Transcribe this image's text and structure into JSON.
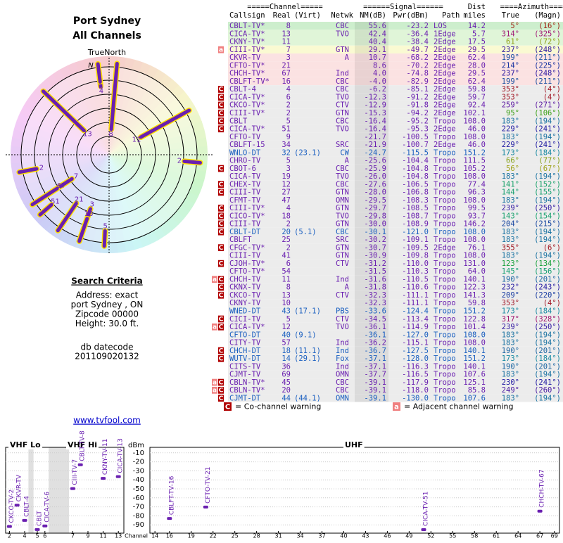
{
  "header": {
    "title": "Port Sydney",
    "subtitle": "All Channels"
  },
  "polar": {
    "north_label": "TrueNorth",
    "north_marker": "N"
  },
  "search": {
    "heading": "Search Criteria",
    "lines": [
      "Address: exact",
      "port Sydney , ON",
      "Zipcode 00000",
      "Height: 30.0 ft."
    ]
  },
  "datecode": {
    "label": "db datecode",
    "value": "201109020132"
  },
  "link": "www.tvfool.com",
  "table": {
    "group_headers": [
      "=====Channel=====",
      "======Signal======",
      "Dist",
      "====Azimuth===="
    ],
    "headers": [
      "Callsign",
      "Real",
      "(Virt)",
      "Netwk",
      "NM(dB)",
      "Pwr(dBm)",
      "Path",
      "miles",
      "True",
      "(Magn)"
    ],
    "rows": [
      {
        "callsign": "CBLT-TV*",
        "real": "8",
        "netwk": "CBC",
        "nm": "55.6",
        "pwr": "-23.2",
        "path": "LOS",
        "dist": "14.2",
        "true": "5°",
        "magn": "(16°)"
      },
      {
        "callsign": "CICA-TV*",
        "real": "13",
        "netwk": "TVO",
        "nm": "42.4",
        "pwr": "-36.4",
        "path": "1Edge",
        "dist": "5.7",
        "true": "314°",
        "magn": "(325°)"
      },
      {
        "callsign": "CKNY-TV*",
        "real": "11",
        "nm": "40.4",
        "pwr": "-38.4",
        "path": "2Edge",
        "dist": "17.5",
        "true": "61°",
        "magn": "(72°)"
      },
      {
        "warn": [
          "a"
        ],
        "callsign": "CIII-TV*",
        "real": "7",
        "netwk": "GTN",
        "nm": "29.1",
        "pwr": "-49.7",
        "path": "2Edge",
        "dist": "29.5",
        "true": "237°",
        "magn": "(248°)"
      },
      {
        "callsign": "CKVR-TV",
        "real": "3",
        "netwk": "A",
        "nm": "10.7",
        "pwr": "-68.2",
        "path": "2Edge",
        "dist": "62.4",
        "true": "199°",
        "magn": "(211°)"
      },
      {
        "callsign": "CFTO-TV*",
        "real": "21",
        "nm": "8.6",
        "pwr": "-70.2",
        "path": "2Edge",
        "dist": "28.0",
        "true": "214°",
        "magn": "(225°)"
      },
      {
        "callsign": "CHCH-TV*",
        "real": "67",
        "netwk": "Ind",
        "nm": "4.0",
        "pwr": "-74.8",
        "path": "2Edge",
        "dist": "29.5",
        "true": "237°",
        "magn": "(248°)"
      },
      {
        "callsign": "CBLFT-TV*",
        "real": "16",
        "netwk": "CBC",
        "nm": "-4.0",
        "pwr": "-82.9",
        "path": "2Edge",
        "dist": "62.4",
        "true": "199°",
        "magn": "(211°)"
      },
      {
        "warn": [
          "C"
        ],
        "callsign": "CBLT-4",
        "real": "4",
        "netwk": "CBC",
        "nm": "-6.2",
        "pwr": "-85.1",
        "path": "2Edge",
        "dist": "59.8",
        "true": "353°",
        "magn": "(4°)"
      },
      {
        "warn": [
          "C"
        ],
        "callsign": "CICA-TV*",
        "real": "6",
        "netwk": "TVO",
        "nm": "-12.3",
        "pwr": "-91.2",
        "path": "2Edge",
        "dist": "59.7",
        "true": "353°",
        "magn": "(4°)"
      },
      {
        "warn": [
          "C"
        ],
        "callsign": "CKCO-TV*",
        "real": "2",
        "netwk": "CTV",
        "nm": "-12.9",
        "pwr": "-91.8",
        "path": "2Edge",
        "dist": "92.4",
        "true": "259°",
        "magn": "(271°)"
      },
      {
        "warn": [
          "C"
        ],
        "callsign": "CIII-TV*",
        "real": "2",
        "netwk": "GTN",
        "nm": "-15.3",
        "pwr": "-94.2",
        "path": "2Edge",
        "dist": "102.1",
        "true": "95°",
        "magn": "(106°)"
      },
      {
        "warn": [
          "C"
        ],
        "callsign": "CBLT",
        "real": "5",
        "netwk": "CBC",
        "nm": "-16.4",
        "pwr": "-95.2",
        "path": "Tropo",
        "dist": "108.0",
        "true": "183°",
        "magn": "(194°)"
      },
      {
        "warn": [
          "C"
        ],
        "callsign": "CICA-TV*",
        "real": "51",
        "netwk": "TVO",
        "nm": "-16.4",
        "pwr": "-95.3",
        "path": "2Edge",
        "dist": "46.0",
        "true": "229°",
        "magn": "(241°)"
      },
      {
        "callsign": "CFTO-TV",
        "real": "9",
        "nm": "-21.7",
        "pwr": "-100.5",
        "path": "Tropo",
        "dist": "108.0",
        "true": "183°",
        "magn": "(194°)"
      },
      {
        "callsign": "CBLFT-15",
        "real": "34",
        "netwk": "SRC",
        "nm": "-21.9",
        "pwr": "-100.7",
        "path": "2Edge",
        "dist": "46.0",
        "true": "229°",
        "magn": "(241°)"
      },
      {
        "callsign": "WNLO-DT",
        "real": "32",
        "virt": "(23.1)",
        "netwk": "CW",
        "nm": "-24.7",
        "pwr": "-115.5",
        "path": "Tropo",
        "dist": "151.2",
        "true": "173°",
        "magn": "(184°)"
      },
      {
        "callsign": "CHRO-TV",
        "real": "5",
        "netwk": "A",
        "nm": "-25.6",
        "pwr": "-104.4",
        "path": "Tropo",
        "dist": "111.5",
        "true": "66°",
        "magn": "(77°)"
      },
      {
        "warn": [
          "C"
        ],
        "callsign": "CBOT-6",
        "real": "3",
        "netwk": "CBC",
        "nm": "-25.9",
        "pwr": "-104.8",
        "path": "Tropo",
        "dist": "105.2",
        "true": "56°",
        "magn": "(67°)"
      },
      {
        "callsign": "CICA-TV",
        "real": "19",
        "netwk": "TVO",
        "nm": "-26.0",
        "pwr": "-104.8",
        "path": "Tropo",
        "dist": "108.0",
        "true": "183°",
        "magn": "(194°)"
      },
      {
        "warn": [
          "C"
        ],
        "callsign": "CHEX-TV",
        "real": "12",
        "netwk": "CBC",
        "nm": "-27.6",
        "pwr": "-106.5",
        "path": "Tropo",
        "dist": "77.4",
        "true": "141°",
        "magn": "(152°)"
      },
      {
        "warn": [
          "C"
        ],
        "callsign": "CIII-TV",
        "real": "27",
        "netwk": "GTN",
        "nm": "-28.0",
        "pwr": "-106.8",
        "path": "Tropo",
        "dist": "96.3",
        "true": "144°",
        "magn": "(155°)"
      },
      {
        "callsign": "CFMT-TV",
        "real": "47",
        "netwk": "OMN",
        "nm": "-29.5",
        "pwr": "-108.3",
        "path": "Tropo",
        "dist": "108.0",
        "true": "183°",
        "magn": "(194°)"
      },
      {
        "warn": [
          "C"
        ],
        "callsign": "CIII-TV*",
        "real": "4",
        "netwk": "GTN",
        "nm": "-29.7",
        "pwr": "-108.5",
        "path": "Tropo",
        "dist": "99.5",
        "true": "239°",
        "magn": "(250°)"
      },
      {
        "warn": [
          "C"
        ],
        "callsign": "CICO-TV*",
        "real": "18",
        "netwk": "TVO",
        "nm": "-29.8",
        "pwr": "-108.7",
        "path": "Tropo",
        "dist": "93.7",
        "true": "143°",
        "magn": "(154°)"
      },
      {
        "warn": [
          "C"
        ],
        "callsign": "CIII-TV",
        "real": "2",
        "netwk": "GTN",
        "nm": "-30.0",
        "pwr": "-108.9",
        "path": "Tropo",
        "dist": "146.2",
        "true": "204°",
        "magn": "(215°)"
      },
      {
        "warn": [
          "C"
        ],
        "callsign": "CBLT-DT",
        "real": "20",
        "virt": "(5.1)",
        "netwk": "CBC",
        "nm": "-30.1",
        "pwr": "-121.0",
        "path": "Tropo",
        "dist": "108.0",
        "true": "183°",
        "magn": "(194°)"
      },
      {
        "callsign": "CBLFT",
        "real": "25",
        "netwk": "SRC",
        "nm": "-30.2",
        "pwr": "-109.1",
        "path": "Tropo",
        "dist": "108.0",
        "true": "183°",
        "magn": "(194°)"
      },
      {
        "warn": [
          "C"
        ],
        "callsign": "CFGC-TV*",
        "real": "2",
        "netwk": "GTN",
        "nm": "-30.7",
        "pwr": "-109.5",
        "path": "2Edge",
        "dist": "76.1",
        "true": "355°",
        "magn": "(6°)"
      },
      {
        "callsign": "CIII-TV",
        "real": "41",
        "netwk": "GTN",
        "nm": "-30.9",
        "pwr": "-109.8",
        "path": "Tropo",
        "dist": "108.0",
        "true": "183°",
        "magn": "(194°)"
      },
      {
        "warn": [
          "C"
        ],
        "callsign": "CJOH-TV*",
        "real": "6",
        "netwk": "CTV",
        "nm": "-31.2",
        "pwr": "-110.0",
        "path": "Tropo",
        "dist": "131.0",
        "true": "123°",
        "magn": "(134°)"
      },
      {
        "callsign": "CFTO-TV*",
        "real": "54",
        "nm": "-31.5",
        "pwr": "-110.3",
        "path": "Tropo",
        "dist": "64.0",
        "true": "145°",
        "magn": "(156°)"
      },
      {
        "warn": [
          "a",
          "C"
        ],
        "callsign": "CHCH-TV",
        "real": "11",
        "netwk": "Ind",
        "nm": "-31.6",
        "pwr": "-110.5",
        "path": "Tropo",
        "dist": "140.1",
        "true": "190°",
        "magn": "(201°)"
      },
      {
        "warn": [
          "C"
        ],
        "callsign": "CKNX-TV",
        "real": "8",
        "netwk": "A",
        "nm": "-31.8",
        "pwr": "-110.6",
        "path": "Tropo",
        "dist": "122.3",
        "true": "232°",
        "magn": "(243°)"
      },
      {
        "warn": [
          "C"
        ],
        "callsign": "CKCO-TV",
        "real": "13",
        "netwk": "CTV",
        "nm": "-32.3",
        "pwr": "-111.1",
        "path": "Tropo",
        "dist": "141.3",
        "true": "209°",
        "magn": "(220°)"
      },
      {
        "callsign": "CKNY-TV",
        "real": "10",
        "nm": "-32.3",
        "pwr": "-111.1",
        "path": "Tropo",
        "dist": "59.8",
        "true": "353°",
        "magn": "(4°)"
      },
      {
        "callsign": "WNED-DT",
        "real": "43",
        "virt": "(17.1)",
        "netwk": "PBS",
        "nm": "-33.6",
        "pwr": "-124.4",
        "path": "Tropo",
        "dist": "151.2",
        "true": "173°",
        "magn": "(184°)"
      },
      {
        "warn": [
          "C"
        ],
        "callsign": "CICI-TV",
        "real": "5",
        "netwk": "CTV",
        "nm": "-34.5",
        "pwr": "-113.4",
        "path": "Tropo",
        "dist": "122.8",
        "true": "317°",
        "magn": "(328°)"
      },
      {
        "warn": [
          "a",
          "C"
        ],
        "callsign": "CICA-TV*",
        "real": "12",
        "netwk": "TVO",
        "nm": "-36.1",
        "pwr": "-114.9",
        "path": "Tropo",
        "dist": "101.4",
        "true": "239°",
        "magn": "(250°)"
      },
      {
        "callsign": "CFTO-DT",
        "real": "40",
        "virt": "(9.1)",
        "nm": "-36.1",
        "pwr": "-127.0",
        "path": "Tropo",
        "dist": "108.0",
        "true": "183°",
        "magn": "(194°)"
      },
      {
        "callsign": "CITY-TV",
        "real": "57",
        "netwk": "Ind",
        "nm": "-36.2",
        "pwr": "-115.1",
        "path": "Tropo",
        "dist": "108.0",
        "true": "183°",
        "magn": "(194°)"
      },
      {
        "warn": [
          "C"
        ],
        "callsign": "CHCH-DT",
        "real": "18",
        "virt": "(11.1)",
        "netwk": "Ind",
        "nm": "-36.7",
        "pwr": "-127.5",
        "path": "Tropo",
        "dist": "140.1",
        "true": "190°",
        "magn": "(201°)"
      },
      {
        "warn": [
          "C"
        ],
        "callsign": "WUTV-DT",
        "real": "14",
        "virt": "(29.1)",
        "netwk": "Fox",
        "nm": "-37.1",
        "pwr": "-128.0",
        "path": "Tropo",
        "dist": "151.2",
        "true": "173°",
        "magn": "(184°)"
      },
      {
        "callsign": "CITS-TV",
        "real": "36",
        "netwk": "Ind",
        "nm": "-37.1",
        "pwr": "-116.3",
        "path": "Tropo",
        "dist": "140.1",
        "true": "190°",
        "magn": "(201°)"
      },
      {
        "callsign": "CJMT-TV",
        "real": "69",
        "netwk": "OMN",
        "nm": "-37.7",
        "pwr": "-116.5",
        "path": "Tropo",
        "dist": "107.6",
        "true": "183°",
        "magn": "(194°)"
      },
      {
        "warn": [
          "a",
          "C"
        ],
        "callsign": "CBLN-TV*",
        "real": "45",
        "netwk": "CBC",
        "nm": "-39.1",
        "pwr": "-117.9",
        "path": "Tropo",
        "dist": "125.1",
        "true": "230°",
        "magn": "(241°)"
      },
      {
        "warn": [
          "a",
          "C"
        ],
        "callsign": "CBLN-TV*",
        "real": "20",
        "netwk": "CBC",
        "nm": "-39.1",
        "pwr": "-118.0",
        "path": "Tropo",
        "dist": "85.8",
        "true": "249°",
        "magn": "(260°)"
      },
      {
        "warn": [
          "C"
        ],
        "callsign": "CJMT-DT",
        "real": "44",
        "virt": "(44.1)",
        "netwk": "OMN",
        "nm": "-39.1",
        "pwr": "-130.0",
        "path": "Tropo",
        "dist": "107.6",
        "true": "183°",
        "magn": "(194°)"
      }
    ]
  },
  "legend": {
    "co": {
      "symbol": "C",
      "text": "= Co-channel warning"
    },
    "adj": {
      "symbol": "a",
      "text": "= Adjacent channel warning"
    }
  },
  "spectrum": {
    "vhf_lo_label": "VHF Lo",
    "vhf_hi_label": "VHF Hi",
    "uhf_label": "UHF",
    "y_label": "dBm",
    "x_label": "Channel",
    "ylim": [
      -100,
      0
    ],
    "yticks": [
      -10,
      -20,
      -30,
      -40,
      -50,
      -60,
      -70,
      -80,
      -90
    ],
    "vhf_xticks": [
      2,
      4,
      5,
      6,
      7,
      9,
      11,
      13
    ],
    "uhf_xticks": [
      14,
      16,
      19,
      22,
      25,
      28,
      31,
      34,
      37,
      40,
      43,
      46,
      49,
      52,
      55,
      58,
      61,
      64,
      67,
      69
    ],
    "stations": [
      {
        "label": "CKCO-TV-2",
        "channel": 2,
        "pwr": -91.8
      },
      {
        "label": "CKVR-TV",
        "channel": 3,
        "pwr": -68.2
      },
      {
        "label": "CBLT-4",
        "channel": 4,
        "pwr": -85.1
      },
      {
        "label": "CBLT",
        "channel": 5,
        "pwr": -95.2
      },
      {
        "label": "CICA-TV-6",
        "channel": 6,
        "pwr": -91.2
      },
      {
        "label": "CIII-TV-7",
        "channel": 7,
        "pwr": -49.7
      },
      {
        "label": "CBLT-TV-8",
        "channel": 8,
        "pwr": -23.2
      },
      {
        "label": "CKNY-TV-11",
        "channel": 11,
        "pwr": -38.4
      },
      {
        "label": "CICA-TV-13",
        "channel": 13,
        "pwr": -36.4
      },
      {
        "label": "CBLFT-TV-16",
        "channel": 16,
        "pwr": -82.9
      },
      {
        "label": "CFTO-TV-21",
        "channel": 21,
        "pwr": -70.2
      },
      {
        "label": "CICA-TV-51",
        "channel": 51,
        "pwr": -95.3
      },
      {
        "label": "CHCH-TV-67",
        "channel": 67,
        "pwr": -74.8
      }
    ]
  }
}
